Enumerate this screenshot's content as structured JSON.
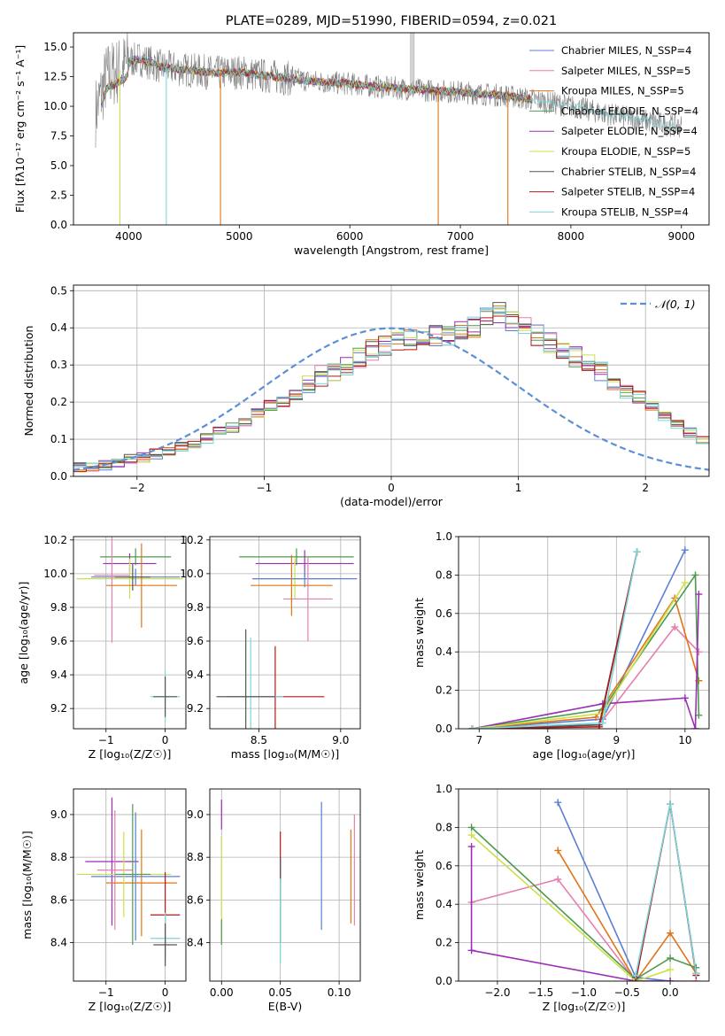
{
  "colors": {
    "chabrier_miles": "#5b7fd6",
    "salpeter_miles": "#e57fb0",
    "kroupa_miles": "#e0751a",
    "chabrier_elodie": "#4f9a4f",
    "salpeter_elodie": "#9b2fb5",
    "kroupa_elodie": "#cbe04a",
    "chabrier_stelib": "#555555",
    "salpeter_stelib": "#b01818",
    "kroupa_stelib": "#7ad6dc",
    "data_spectrum": "#808080",
    "gaussian": "#5b8fd6"
  },
  "chart_data": [
    {
      "id": "spectrum",
      "type": "line",
      "title": "PLATE=0289, MJD=51990, FIBERID=0594, z=0.021",
      "xlabel": "wavelength [Angstrom, rest frame]",
      "ylabel": "Flux [fλ10⁻¹⁷ erg cm⁻² s⁻¹ A⁻¹]",
      "xlim": [
        3500,
        9250
      ],
      "ylim": [
        0,
        16.2
      ],
      "xticks": [
        "4000",
        "5000",
        "6000",
        "7000",
        "8000",
        "9000"
      ],
      "yticks": [
        "0.0",
        "2.5",
        "5.0",
        "7.5",
        "10.0",
        "12.5",
        "15.0"
      ],
      "legend": {
        "placement": "top-right",
        "entries": [
          "Chabrier MILES, N_SSP=4",
          "Salpeter MILES, N_SSP=5",
          "Kroupa MILES, N_SSP=5",
          "Chabrier ELODIE, N_SSP=4",
          "Salpeter ELODIE, N_SSP=4",
          "Kroupa ELODIE, N_SSP=5",
          "Chabrier STELIB, N_SSP=4",
          "Salpeter STELIB, N_SSP=4",
          "Kroupa STELIB, N_SSP=4"
        ]
      },
      "continuum": [
        [
          3700,
          9.5
        ],
        [
          3800,
          12.5
        ],
        [
          3950,
          13.2
        ],
        [
          4000,
          13.8
        ],
        [
          4100,
          14.0
        ],
        [
          4300,
          13.3
        ],
        [
          4500,
          13.1
        ],
        [
          4800,
          12.8
        ],
        [
          5000,
          12.9
        ],
        [
          5200,
          12.6
        ],
        [
          5500,
          12.3
        ],
        [
          5800,
          12.0
        ],
        [
          6000,
          11.9
        ],
        [
          6300,
          11.6
        ],
        [
          6600,
          11.4
        ],
        [
          7000,
          11.2
        ],
        [
          7400,
          10.9
        ],
        [
          7700,
          10.5
        ],
        [
          8000,
          10.0
        ],
        [
          8300,
          9.4
        ],
        [
          8600,
          8.9
        ],
        [
          8900,
          8.4
        ],
        [
          9000,
          8.3
        ]
      ]
    },
    {
      "id": "residuals",
      "type": "bar",
      "xlabel": "(data-model)/error",
      "ylabel": "Normed distribution",
      "xlim": [
        -2.5,
        2.5
      ],
      "ylim": [
        0,
        0.515
      ],
      "xticks": [
        "−2",
        "−1",
        "0",
        "1",
        "2"
      ],
      "yticks": [
        "0.0",
        "0.1",
        "0.2",
        "0.3",
        "0.4",
        "0.5"
      ],
      "legend": {
        "placement": "top-right",
        "entries": [
          "𝒩(0, 1)"
        ]
      },
      "bin_width": 0.1,
      "bin_start": -2.5,
      "values": [
        0.025,
        0.022,
        0.03,
        0.035,
        0.045,
        0.05,
        0.06,
        0.065,
        0.08,
        0.09,
        0.1,
        0.12,
        0.13,
        0.15,
        0.17,
        0.19,
        0.2,
        0.22,
        0.25,
        0.27,
        0.28,
        0.3,
        0.32,
        0.34,
        0.35,
        0.36,
        0.37,
        0.37,
        0.38,
        0.38,
        0.39,
        0.4,
        0.43,
        0.44,
        0.42,
        0.4,
        0.38,
        0.36,
        0.33,
        0.32,
        0.3,
        0.28,
        0.26,
        0.24,
        0.21,
        0.19,
        0.16,
        0.14,
        0.12,
        0.1,
        0.09,
        0.08,
        0.06,
        0.05,
        0.04,
        0.04,
        0.035,
        0.03,
        0.028,
        0.027,
        0.025,
        0.024,
        0.024
      ],
      "gaussian": {
        "mean": 0,
        "sigma": 1
      }
    },
    {
      "id": "age-vs-Z",
      "type": "scatter",
      "xlabel": "Z [log₁₀(Z/Z☉)]",
      "ylabel": "age  [log₁₀(age/yr)]",
      "xlim": [
        -1.55,
        0.35
      ],
      "ylim": [
        9.08,
        10.22
      ],
      "xticks": [
        "−1",
        "0"
      ],
      "yticks": [
        "9.2",
        "9.4",
        "9.6",
        "9.8",
        "10.0",
        "10.2"
      ],
      "points": [
        {
          "model": "chabrier_elodie",
          "x": -0.5,
          "y": 10.1,
          "xerr": 0.6,
          "yerr": 0.05
        },
        {
          "model": "salpeter_elodie",
          "x": -0.6,
          "y": 10.06,
          "xerr": 0.45,
          "yerr": 0.06
        },
        {
          "model": "kroupa_elodie",
          "x": -0.6,
          "y": 9.97,
          "xerr": 0.9,
          "yerr": 0.12
        },
        {
          "model": "chabrier_miles",
          "x": -0.5,
          "y": 9.98,
          "xerr": 0.75,
          "yerr": 0.05
        },
        {
          "model": "salpeter_miles",
          "x": -0.9,
          "y": 9.99,
          "xerr": 0.3,
          "yerr": 0.4
        },
        {
          "model": "kroupa_miles",
          "x": -0.4,
          "y": 9.93,
          "xerr": 0.6,
          "yerr": 0.25
        },
        {
          "model": "chabrier_stelib",
          "x": -0.55,
          "y": 9.98,
          "xerr": 0.3,
          "yerr": 0.08
        },
        {
          "model": "kroupa_stelib",
          "x": 0.0,
          "y": 9.27,
          "xerr": 0.25,
          "yerr": 0.15
        },
        {
          "model": "chabrier_stelib",
          "x": 0.0,
          "y": 9.27,
          "xerr": 0.2,
          "yerr": 0.12
        }
      ]
    },
    {
      "id": "age-vs-mass",
      "type": "scatter",
      "xlabel": "mass [log₁₀(M/M☉)]",
      "ylabel": "",
      "xlim": [
        8.2,
        9.12
      ],
      "ylim": [
        9.08,
        10.22
      ],
      "xticks": [
        "8.5",
        "9.0"
      ],
      "yticks": [
        "9.2",
        "9.4",
        "9.6",
        "9.8",
        "10.0",
        "10.2"
      ],
      "points": [
        {
          "model": "chabrier_elodie",
          "x": 8.73,
          "y": 10.1,
          "xerr": 0.35,
          "yerr": 0.05
        },
        {
          "model": "salpeter_elodie",
          "x": 8.78,
          "y": 10.06,
          "xerr": 0.3,
          "yerr": 0.08
        },
        {
          "model": "kroupa_elodie",
          "x": 8.72,
          "y": 9.97,
          "xerr": 0.25,
          "yerr": 0.12
        },
        {
          "model": "chabrier_miles",
          "x": 8.78,
          "y": 9.97,
          "xerr": 0.32,
          "yerr": 0.05
        },
        {
          "model": "salpeter_miles",
          "x": 8.8,
          "y": 9.85,
          "xerr": 0.15,
          "yerr": 0.25
        },
        {
          "model": "kroupa_miles",
          "x": 8.7,
          "y": 9.93,
          "xerr": 0.25,
          "yerr": 0.18
        },
        {
          "model": "salpeter_stelib",
          "x": 8.6,
          "y": 9.27,
          "xerr": 0.3,
          "yerr": 0.3
        },
        {
          "model": "kroupa_stelib",
          "x": 8.45,
          "y": 9.27,
          "xerr": 0.2,
          "yerr": 0.35
        },
        {
          "model": "chabrier_stelib",
          "x": 8.42,
          "y": 9.27,
          "xerr": 0.18,
          "yerr": 0.4
        }
      ]
    },
    {
      "id": "massweight-vs-age",
      "type": "line",
      "xlabel": "age  [log₁₀(age/yr)]",
      "ylabel": "mass weight",
      "xlim": [
        6.7,
        10.35
      ],
      "ylim": [
        0,
        1.0
      ],
      "xticks": [
        "7",
        "8",
        "9",
        "10"
      ],
      "yticks": [
        "0.0",
        "0.2",
        "0.4",
        "0.6",
        "0.8",
        "1.0"
      ],
      "series": [
        {
          "model": "chabrier_miles",
          "x": [
            6.9,
            8.8,
            10.0
          ],
          "y": [
            0.0,
            0.05,
            0.93
          ]
        },
        {
          "model": "salpeter_miles",
          "x": [
            6.9,
            8.75,
            9.85,
            10.2
          ],
          "y": [
            0.0,
            0.02,
            0.53,
            0.4
          ]
        },
        {
          "model": "kroupa_miles",
          "x": [
            6.9,
            8.7,
            9.85,
            10.2
          ],
          "y": [
            0.0,
            0.06,
            0.68,
            0.25
          ]
        },
        {
          "model": "chabrier_elodie",
          "x": [
            6.9,
            8.8,
            10.15,
            10.2
          ],
          "y": [
            0.0,
            0.1,
            0.8,
            0.07
          ]
        },
        {
          "model": "salpeter_elodie",
          "x": [
            6.9,
            8.8,
            10.0,
            10.15,
            10.2
          ],
          "y": [
            0.0,
            0.13,
            0.16,
            0.0,
            0.7
          ]
        },
        {
          "model": "kroupa_elodie",
          "x": [
            6.9,
            8.8,
            10.0
          ],
          "y": [
            0.0,
            0.08,
            0.76
          ]
        },
        {
          "model": "chabrier_stelib",
          "x": [
            6.9,
            8.75,
            9.3
          ],
          "y": [
            0.0,
            0.02,
            0.92
          ]
        },
        {
          "model": "salpeter_stelib",
          "x": [
            6.9,
            8.75,
            9.3
          ],
          "y": [
            0.0,
            0.01,
            0.92
          ]
        },
        {
          "model": "kroupa_stelib",
          "x": [
            6.9,
            8.8,
            9.3
          ],
          "y": [
            0.0,
            0.03,
            0.92
          ]
        }
      ]
    },
    {
      "id": "mass-vs-Z",
      "type": "scatter",
      "xlabel": "Z [log₁₀(Z/Z☉)]",
      "ylabel": "mass [log₁₀(M/M☉)]",
      "xlim": [
        -1.55,
        0.35
      ],
      "ylim": [
        8.22,
        9.12
      ],
      "xticks": [
        "−1",
        "0"
      ],
      "yticks": [
        "8.4",
        "8.6",
        "8.8",
        "9.0"
      ],
      "points": [
        {
          "model": "salpeter_elodie",
          "x": -0.9,
          "y": 8.78,
          "xerr": 0.45,
          "yerr": 0.3
        },
        {
          "model": "chabrier_miles",
          "x": -0.5,
          "y": 8.71,
          "xerr": 0.75,
          "yerr": 0.3
        },
        {
          "model": "salpeter_miles",
          "x": -0.85,
          "y": 8.74,
          "xerr": 0.3,
          "yerr": 0.28
        },
        {
          "model": "kroupa_miles",
          "x": -0.4,
          "y": 8.68,
          "xerr": 0.6,
          "yerr": 0.25
        },
        {
          "model": "kroupa_elodie",
          "x": -0.7,
          "y": 8.72,
          "xerr": 0.8,
          "yerr": 0.2
        },
        {
          "model": "chabrier_elodie",
          "x": -0.55,
          "y": 8.72,
          "xerr": 0.3,
          "yerr": 0.33
        },
        {
          "model": "salpeter_stelib",
          "x": 0.0,
          "y": 8.53,
          "xerr": 0.25,
          "yerr": 0.2
        },
        {
          "model": "kroupa_stelib",
          "x": 0.0,
          "y": 8.42,
          "xerr": 0.25,
          "yerr": 0.12
        },
        {
          "model": "chabrier_stelib",
          "x": 0.0,
          "y": 8.39,
          "xerr": 0.2,
          "yerr": 0.1
        }
      ]
    },
    {
      "id": "mass-vs-EBV",
      "type": "scatter",
      "xlabel": "E(B-V)",
      "ylabel": "",
      "xlim": [
        -0.01,
        0.118
      ],
      "ylim": [
        8.22,
        9.12
      ],
      "xticks": [
        "0.00",
        "0.05",
        "0.10"
      ],
      "yticks": [
        "8.4",
        "8.6",
        "8.8",
        "9.0"
      ],
      "points": [
        {
          "model": "salpeter_elodie",
          "x": 0.0,
          "y": 9.0,
          "yerr": 0.07
        },
        {
          "model": "kroupa_elodie",
          "x": 0.0,
          "y": 8.65,
          "yerr": 0.25
        },
        {
          "model": "chabrier_elodie",
          "x": 0.0,
          "y": 8.45,
          "yerr": 0.06
        },
        {
          "model": "salpeter_stelib",
          "x": 0.05,
          "y": 8.8,
          "yerr": 0.12
        },
        {
          "model": "chabrier_stelib",
          "x": 0.05,
          "y": 8.6,
          "yerr": 0.2
        },
        {
          "model": "kroupa_stelib",
          "x": 0.05,
          "y": 8.5,
          "yerr": 0.2
        },
        {
          "model": "chabrier_miles",
          "x": 0.085,
          "y": 8.76,
          "yerr": 0.3
        },
        {
          "model": "kroupa_miles",
          "x": 0.11,
          "y": 8.71,
          "yerr": 0.22
        },
        {
          "model": "salpeter_miles",
          "x": 0.113,
          "y": 8.74,
          "yerr": 0.26
        }
      ]
    },
    {
      "id": "massweight-vs-Z",
      "type": "line",
      "xlabel": "Z [log₁₀(Z/Z☉)]",
      "ylabel": "mass weight",
      "xlim": [
        -2.45,
        0.45
      ],
      "ylim": [
        0,
        1.0
      ],
      "xticks": [
        "−2.0",
        "−1.5",
        "−1.0",
        "−0.5",
        "0.0"
      ],
      "yticks": [
        "0.0",
        "0.2",
        "0.4",
        "0.6",
        "0.8",
        "1.0"
      ],
      "series": [
        {
          "model": "chabrier_miles",
          "x": [
            -1.3,
            -0.4,
            0.0
          ],
          "y": [
            0.93,
            0.02,
            0.0
          ]
        },
        {
          "model": "salpeter_miles",
          "x": [
            -2.3,
            -1.3,
            -0.4,
            0.3
          ],
          "y": [
            0.41,
            0.53,
            0.0,
            0.0
          ]
        },
        {
          "model": "kroupa_miles",
          "x": [
            -1.3,
            -0.4,
            0.0,
            0.3
          ],
          "y": [
            0.68,
            0.0,
            0.25,
            0.04
          ]
        },
        {
          "model": "chabrier_elodie",
          "x": [
            -2.3,
            -0.4,
            0.0,
            0.3
          ],
          "y": [
            0.8,
            0.01,
            0.12,
            0.07
          ]
        },
        {
          "model": "salpeter_elodie",
          "x": [
            -2.3,
            -2.3,
            -0.4,
            0.0
          ],
          "y": [
            0.7,
            0.16,
            0.0,
            0.0
          ]
        },
        {
          "model": "kroupa_elodie",
          "x": [
            -2.3,
            -0.4,
            0.0
          ],
          "y": [
            0.76,
            0.0,
            0.06
          ]
        },
        {
          "model": "chabrier_stelib",
          "x": [
            -0.4,
            0.0,
            0.3
          ],
          "y": [
            0.02,
            0.92,
            0.04
          ]
        },
        {
          "model": "salpeter_stelib",
          "x": [
            -0.4,
            0.0,
            0.3
          ],
          "y": [
            0.0,
            0.92,
            0.03
          ]
        },
        {
          "model": "kroupa_stelib",
          "x": [
            -0.4,
            0.0,
            0.3
          ],
          "y": [
            0.03,
            0.92,
            0.04
          ]
        }
      ]
    }
  ]
}
